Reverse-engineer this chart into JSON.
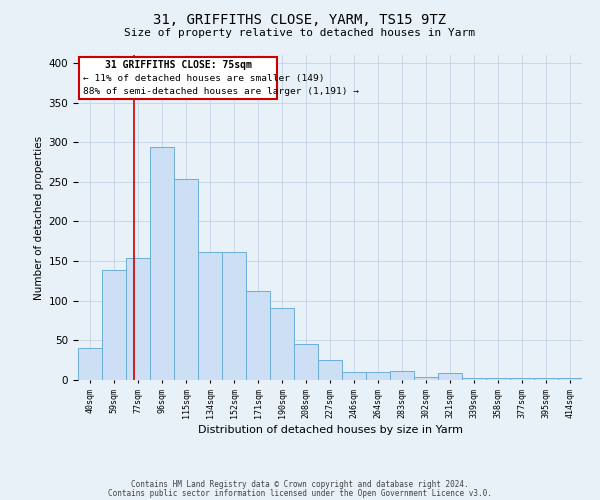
{
  "title": "31, GRIFFITHS CLOSE, YARM, TS15 9TZ",
  "subtitle": "Size of property relative to detached houses in Yarm",
  "xlabel": "Distribution of detached houses by size in Yarm",
  "ylabel": "Number of detached properties",
  "footer_line1": "Contains HM Land Registry data © Crown copyright and database right 2024.",
  "footer_line2": "Contains public sector information licensed under the Open Government Licence v3.0.",
  "bin_labels": [
    "40sqm",
    "59sqm",
    "77sqm",
    "96sqm",
    "115sqm",
    "134sqm",
    "152sqm",
    "171sqm",
    "190sqm",
    "208sqm",
    "227sqm",
    "246sqm",
    "264sqm",
    "283sqm",
    "302sqm",
    "321sqm",
    "339sqm",
    "358sqm",
    "377sqm",
    "395sqm",
    "414sqm"
  ],
  "bar_values": [
    40,
    139,
    154,
    294,
    253,
    161,
    161,
    112,
    91,
    46,
    25,
    10,
    10,
    11,
    4,
    9,
    2,
    2,
    3,
    2,
    2
  ],
  "bar_color": "#ccdff5",
  "bar_edge_color": "#6aaed6",
  "grid_color": "#c8d8e8",
  "background_color": "#e8f0f8",
  "annotation_box_color": "#cc0000",
  "property_line_color": "#cc0000",
  "annotation_text_line1": "31 GRIFFITHS CLOSE: 75sqm",
  "annotation_text_line2": "← 11% of detached houses are smaller (149)",
  "annotation_text_line3": "88% of semi-detached houses are larger (1,191) →",
  "ylim": [
    0,
    410
  ],
  "yticks": [
    0,
    50,
    100,
    150,
    200,
    250,
    300,
    350,
    400
  ],
  "property_line_x": 1.85
}
